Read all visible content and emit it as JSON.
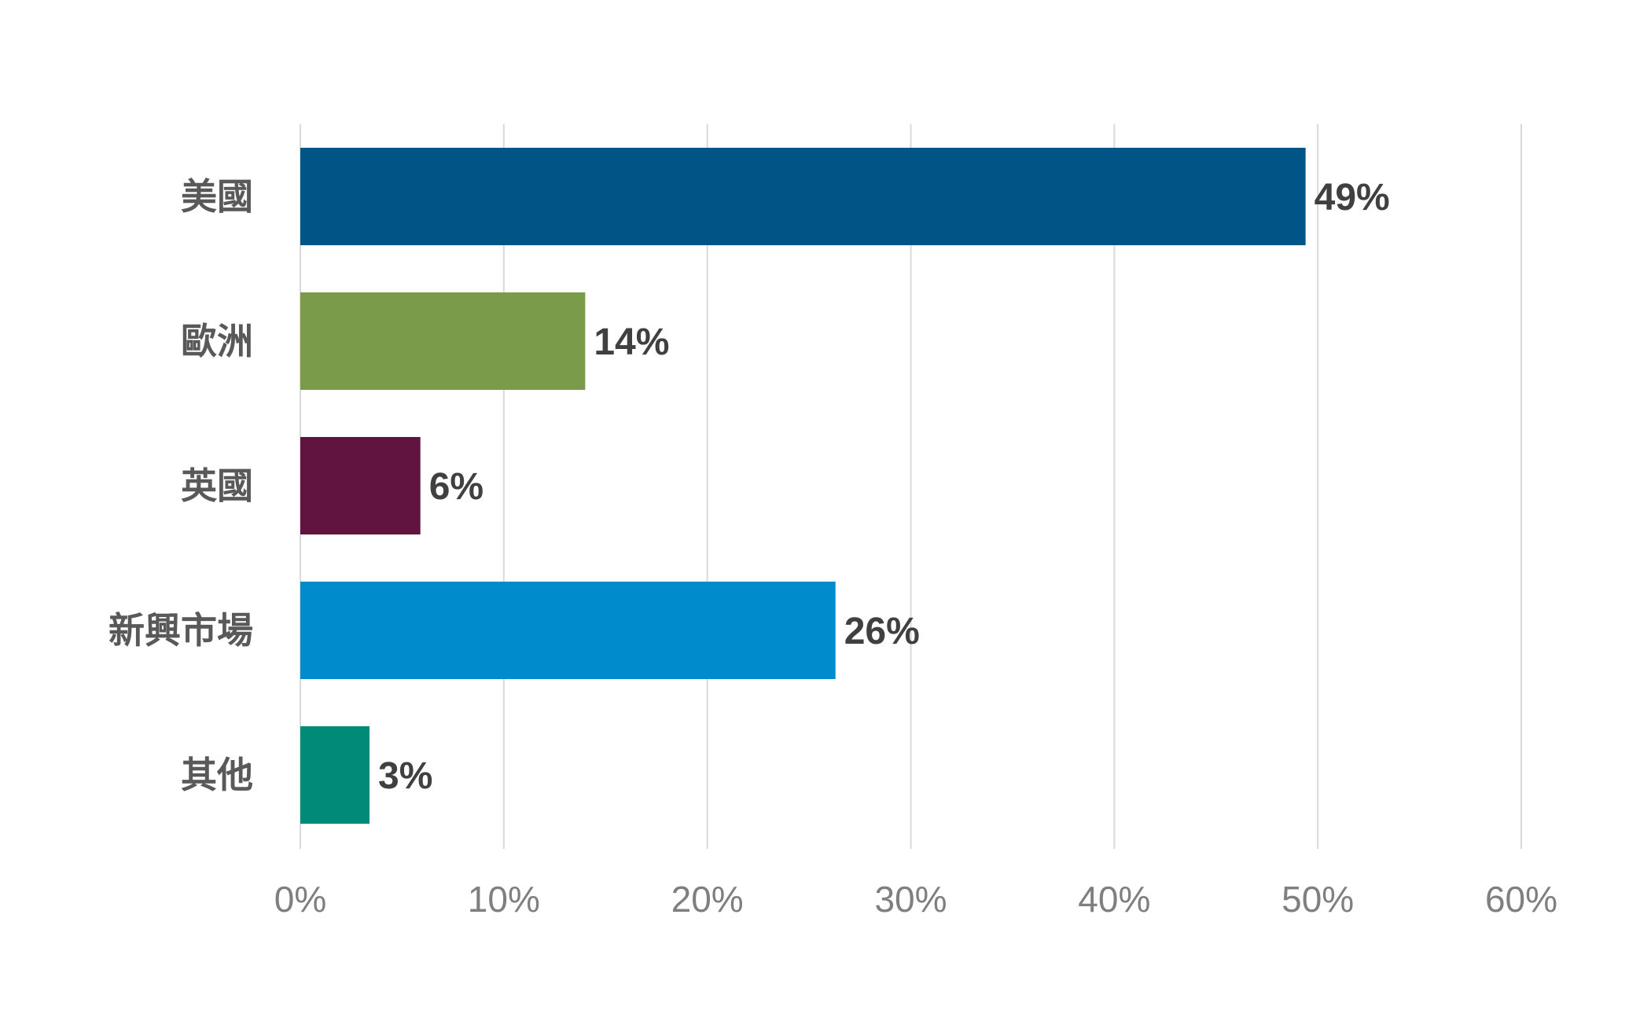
{
  "chart_data": {
    "type": "bar",
    "orientation": "horizontal",
    "title": "",
    "xlabel": "",
    "ylabel": "",
    "xlim": [
      0,
      60
    ],
    "grid": true,
    "tick_values": [
      0,
      10,
      20,
      30,
      40,
      50,
      60
    ],
    "tick_labels": [
      "0%",
      "10%",
      "20%",
      "30%",
      "40%",
      "50%",
      "60%"
    ],
    "categories": [
      "美國",
      "歐洲",
      "英國",
      "新興市場",
      "其他"
    ],
    "values": [
      49.4,
      14.0,
      5.9,
      26.3,
      3.4
    ],
    "data_labels": [
      "49%",
      "14%",
      "6%",
      "26%",
      "3%"
    ],
    "colors": [
      "#005587",
      "#7A9C4A",
      "#611440",
      "#008BCC",
      "#008A78"
    ]
  }
}
